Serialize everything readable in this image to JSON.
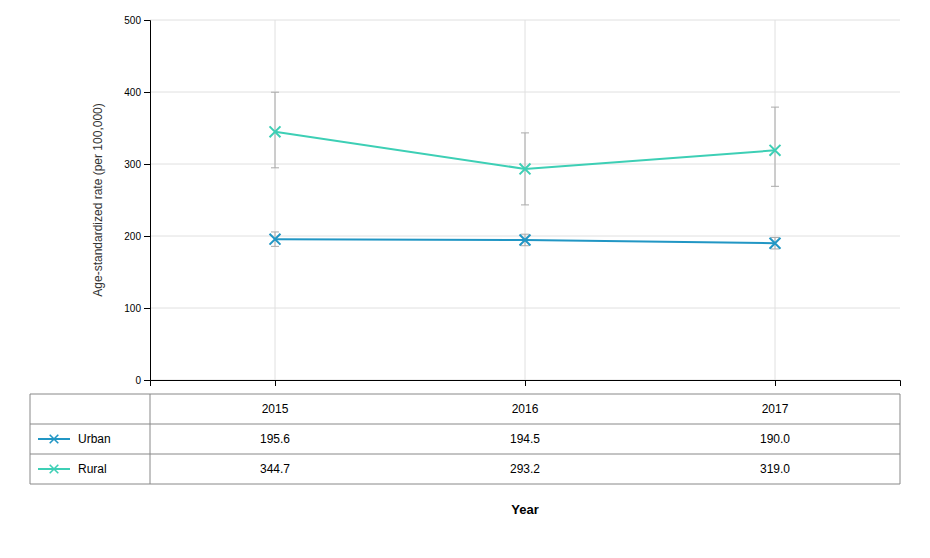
{
  "chart_data": {
    "type": "line",
    "xlabel": "Year",
    "ylabel": "Age-standardized rate (per 100,000)",
    "x": [
      2015,
      2016,
      2017
    ],
    "xlim": [
      2014.5,
      2017.5
    ],
    "xticks": [
      2015,
      2016,
      2017
    ],
    "ylim": [
      0,
      500
    ],
    "yticks": [
      0,
      100,
      200,
      300,
      400,
      500
    ],
    "grid": true,
    "marker": "x",
    "series": [
      {
        "name": "Urban",
        "color": "#2196C4",
        "values": [
          195.6,
          194.5,
          190.0
        ],
        "value_labels": [
          "195.6",
          "194.5",
          "190.0"
        ],
        "yerr_lower": [
          10,
          8,
          8
        ],
        "yerr_upper": [
          10,
          8,
          8
        ]
      },
      {
        "name": "Rural",
        "color": "#3DCFB5",
        "values": [
          344.7,
          293.2,
          319.0
        ],
        "value_labels": [
          "344.7",
          "293.2",
          "319.0"
        ],
        "yerr_lower": [
          50,
          50,
          50
        ],
        "yerr_upper": [
          55,
          50,
          60
        ]
      }
    ]
  }
}
